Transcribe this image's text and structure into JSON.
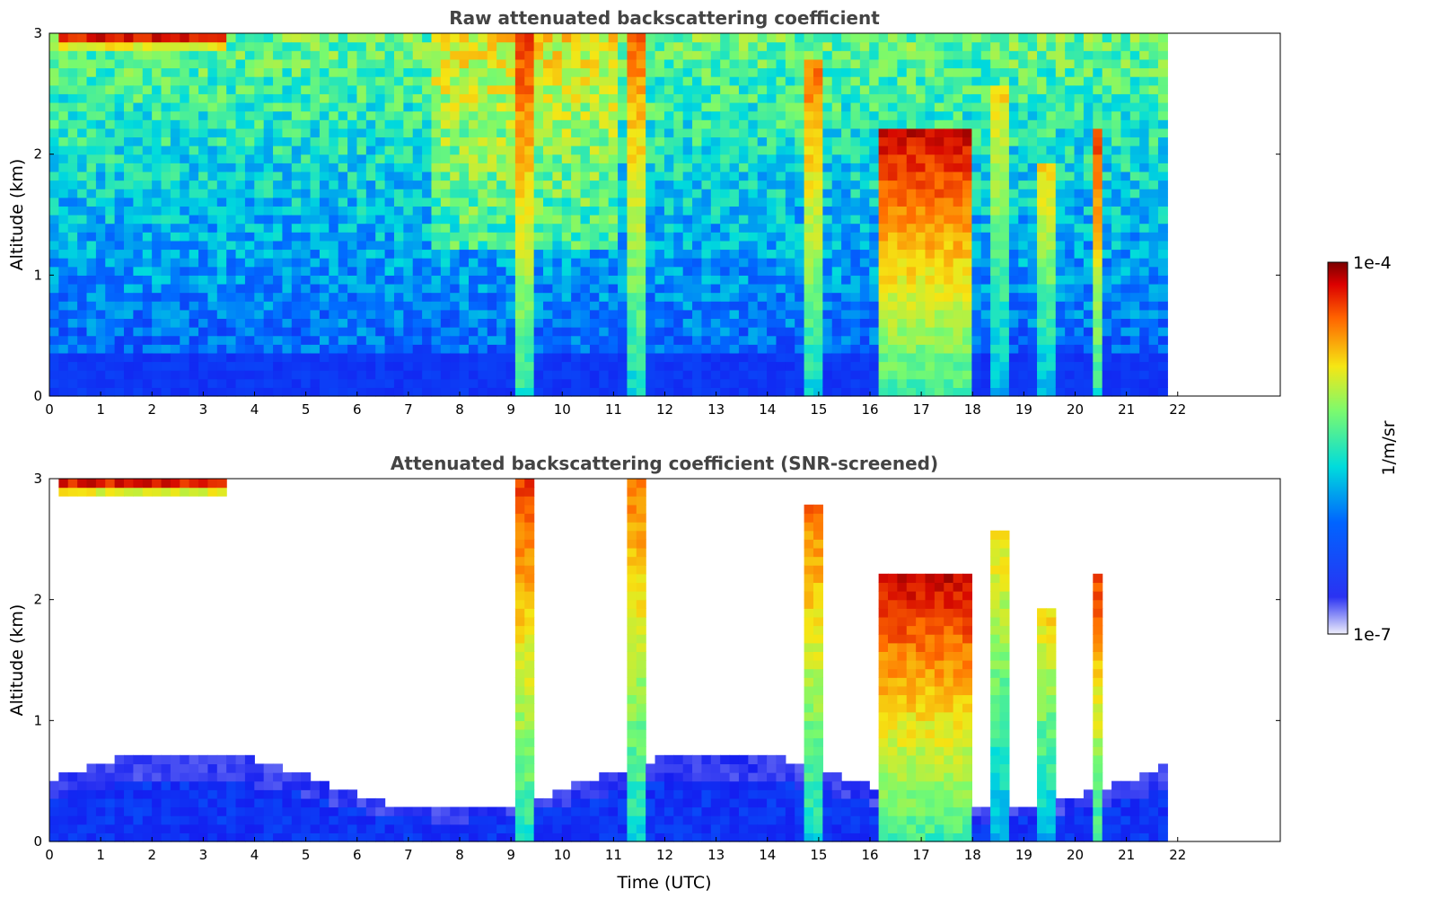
{
  "chart_data": [
    {
      "type": "heatmap",
      "title": "Raw attenuated backscattering coefficient",
      "xlabel": "",
      "ylabel": "Altitude (km)",
      "xlim": [
        0,
        24
      ],
      "ylim": [
        0,
        3
      ],
      "xticks": [
        "0",
        "1",
        "2",
        "3",
        "4",
        "5",
        "6",
        "7",
        "8",
        "9",
        "10",
        "11",
        "12",
        "13",
        "14",
        "15",
        "16",
        "17",
        "18",
        "19",
        "20",
        "21",
        "22"
      ],
      "yticks": [
        "0",
        "1",
        "2",
        "3"
      ],
      "data_end_time": 21.8,
      "screened": false,
      "cloud_features": [
        {
          "t": [
            0.2,
            3.4
          ],
          "z": [
            2.85,
            3.0
          ],
          "level": 0.98
        },
        {
          "t": [
            9.1,
            9.5
          ],
          "z": [
            0.0,
            3.0
          ],
          "level": 0.85
        },
        {
          "t": [
            11.2,
            11.6
          ],
          "z": [
            0.0,
            3.0
          ],
          "level": 0.8
        },
        {
          "t": [
            14.7,
            15.0
          ],
          "z": [
            0.0,
            2.8
          ],
          "level": 0.8
        },
        {
          "t": [
            16.2,
            17.9
          ],
          "z": [
            0.0,
            2.2
          ],
          "level": 0.9
        },
        {
          "t": [
            18.4,
            18.8
          ],
          "z": [
            0.0,
            2.6
          ],
          "level": 0.7
        },
        {
          "t": [
            19.2,
            19.6
          ],
          "z": [
            0.0,
            1.9
          ],
          "level": 0.7
        },
        {
          "t": [
            20.3,
            20.5
          ],
          "z": [
            0.0,
            2.2
          ],
          "level": 0.85
        }
      ]
    },
    {
      "type": "heatmap",
      "title": "Attenuated backscattering coefficient (SNR-screened)",
      "xlabel": "Time (UTC)",
      "ylabel": "Altitude (km)",
      "xlim": [
        0,
        24
      ],
      "ylim": [
        0,
        3
      ],
      "xticks": [
        "0",
        "1",
        "2",
        "3",
        "4",
        "5",
        "6",
        "7",
        "8",
        "9",
        "10",
        "11",
        "12",
        "13",
        "14",
        "15",
        "16",
        "17",
        "18",
        "19",
        "20",
        "21",
        "22"
      ],
      "yticks": [
        "0",
        "1",
        "2",
        "3"
      ],
      "data_end_time": 21.8,
      "screened": true
    }
  ],
  "colorbar": {
    "label": "1/m/sr",
    "max_label": "1e-4",
    "min_label": "1e-7",
    "colormap": "jet"
  },
  "colors": {
    "low": "#0a14f0",
    "mid": "#00e6c8",
    "high_mid": "#f0e600",
    "high": "#e61400",
    "saturated": "#8c0000",
    "title": "#444444"
  }
}
